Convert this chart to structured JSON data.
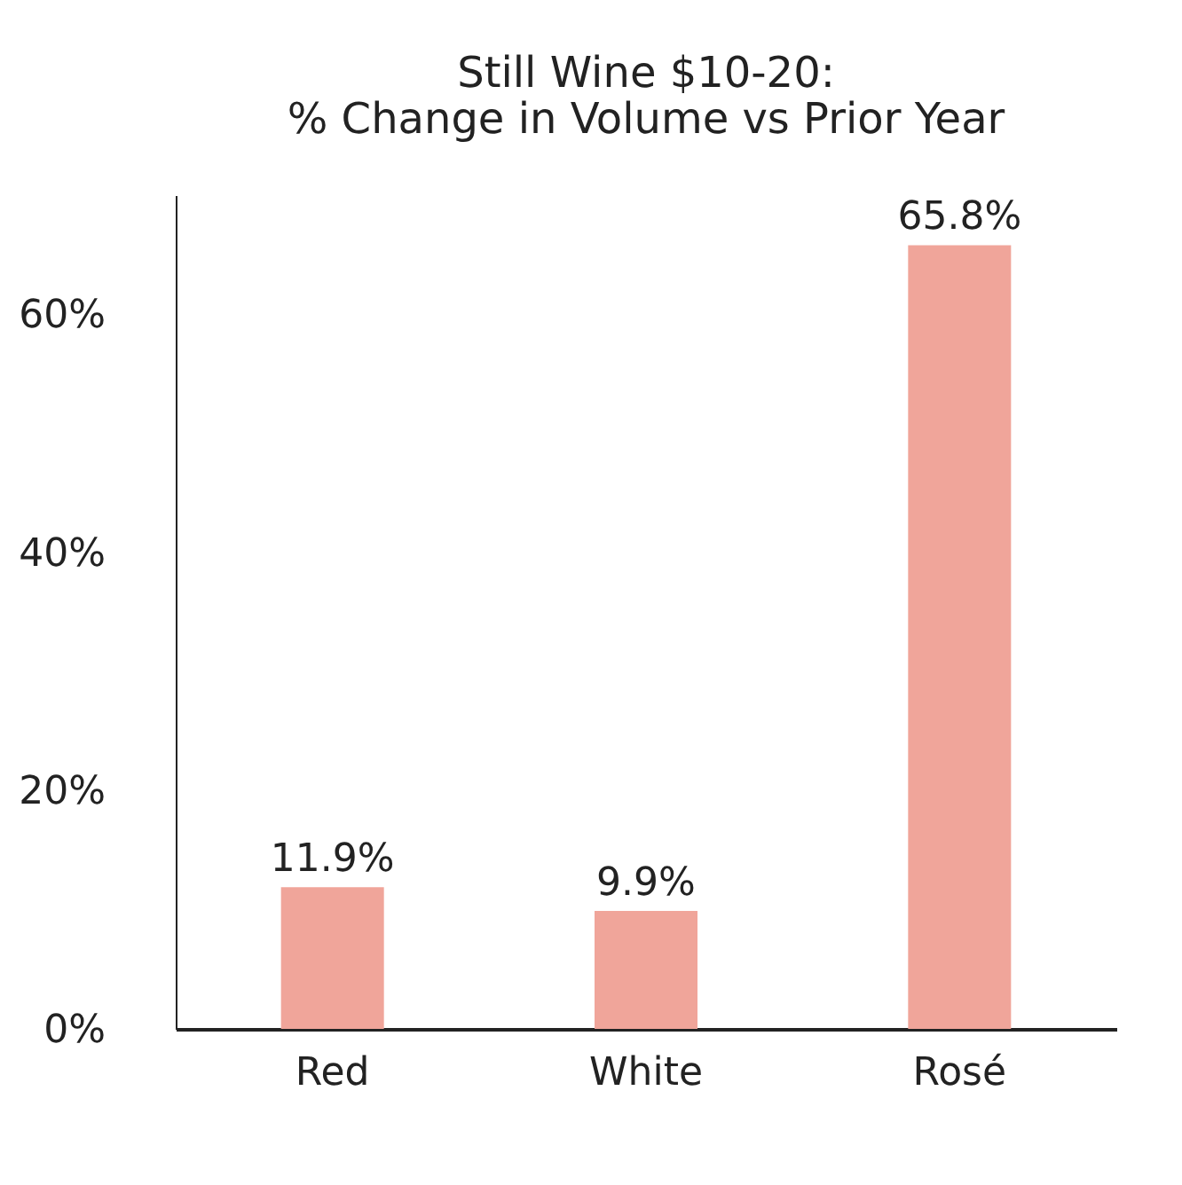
{
  "chart_data": {
    "type": "bar",
    "title": [
      "Still Wine $10-20:",
      "% Change in Volume vs Prior Year"
    ],
    "categories": [
      "Red",
      "White",
      "Rosé"
    ],
    "values": [
      11.9,
      9.9,
      65.8
    ],
    "color": "#f0a59a",
    "ylim": [
      0,
      70
    ],
    "yticks": [
      {
        "value": 0,
        "label": "0%"
      },
      {
        "value": 20,
        "label": "20%"
      },
      {
        "value": 40,
        "label": "40%"
      },
      {
        "value": 60,
        "label": "60%"
      }
    ],
    "data_labels": true,
    "value_labels": [
      "11.9%",
      "9.9%",
      "65.8%"
    ],
    "grid": false
  }
}
